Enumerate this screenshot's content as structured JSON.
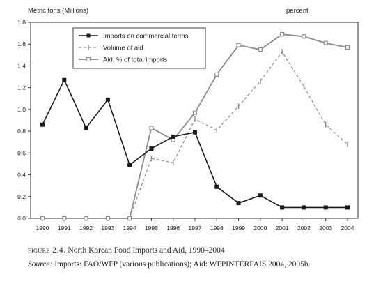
{
  "chart_data": {
    "type": "line",
    "y_axis_label": "Metric tons (Millions)",
    "y2_axis_label": "percent",
    "x": [
      1990,
      1991,
      1992,
      1993,
      1994,
      1995,
      1996,
      1997,
      1998,
      1999,
      2000,
      2001,
      2002,
      2003,
      2004
    ],
    "x_tick_labels": [
      "1990",
      "1991",
      "1992",
      "1993",
      "1994",
      "1995",
      "1996",
      "1997",
      "1998",
      "1999",
      "2000",
      "2001",
      "2002",
      "2003",
      "2004"
    ],
    "ylim": [
      0,
      1.8
    ],
    "y_tick_labels": [
      "0.0",
      "0.2",
      "0.4",
      "0.6",
      "0.8",
      "1.0",
      "1.2",
      "1.4",
      "1.6",
      "1.8"
    ],
    "grid": false,
    "legend_position": "top-left",
    "series": [
      {
        "name": "Imports on commercial terms",
        "style": "solid-black-filled-square",
        "values": [
          0.86,
          1.27,
          0.83,
          1.09,
          0.49,
          0.64,
          0.75,
          0.79,
          0.29,
          0.14,
          0.21,
          0.1,
          0.1,
          0.1,
          0.1
        ]
      },
      {
        "name": "Volume of aid",
        "style": "dashed-gray-bar-marker",
        "values": [
          0.0,
          0.0,
          0.0,
          0.0,
          0.0,
          0.55,
          0.51,
          0.91,
          0.81,
          1.03,
          1.26,
          1.53,
          1.21,
          0.86,
          0.68
        ]
      },
      {
        "name": "Aid, % of total imports",
        "style": "solid-gray-open-square",
        "values": [
          0.0,
          0.0,
          0.0,
          0.0,
          0.0,
          0.83,
          0.72,
          0.97,
          1.32,
          1.59,
          1.55,
          1.69,
          1.67,
          1.61,
          1.57
        ]
      }
    ],
    "colors": {
      "imports": "#1a1a1a",
      "aid_volume": "#8c8c8c",
      "aid_percent": "#8c8c8c"
    }
  },
  "caption": {
    "label": "figure 2.4.",
    "title": "North Korean Food Imports and Aid, 1990–2004"
  },
  "source": {
    "label": "Source:",
    "text": "Imports: FAO/WFP (various publications); Aid: WFPINTERFAIS 2004, 2005b."
  }
}
